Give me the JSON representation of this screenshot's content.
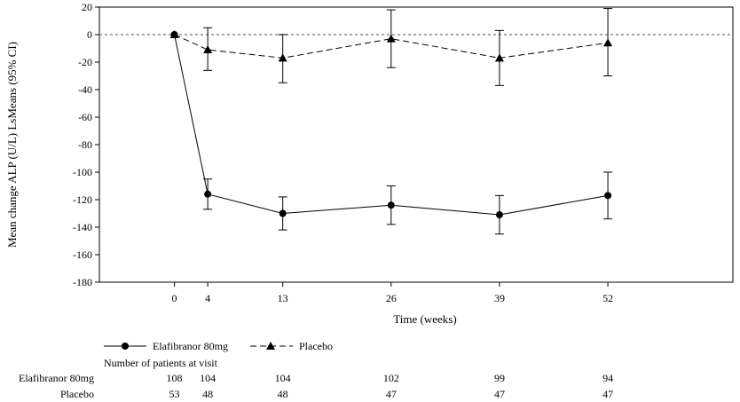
{
  "chart_data": {
    "type": "line",
    "xlabel": "Time (weeks)",
    "ylabel": "Mean change ALP (U/L) LsMeans (95% CI)",
    "x": [
      0,
      4,
      13,
      26,
      39,
      52
    ],
    "xlim": [
      -9,
      67
    ],
    "ylim": [
      -180,
      20
    ],
    "yticks": [
      20,
      0,
      -20,
      -40,
      -60,
      -80,
      -100,
      -120,
      -140,
      -160,
      -180
    ],
    "reference_line": 0,
    "legend_placement": "bottom-left",
    "series": [
      {
        "name": "Elafibranor 80mg",
        "marker": "circle",
        "line_style": "solid",
        "values": [
          0,
          -116,
          -130,
          -124,
          -131,
          -117
        ],
        "ci_lower": [
          0,
          -127,
          -142,
          -138,
          -145,
          -134
        ],
        "ci_upper": [
          0,
          -105,
          -118,
          -110,
          -117,
          -100
        ]
      },
      {
        "name": "Placebo",
        "marker": "triangle",
        "line_style": "dashed",
        "values": [
          0,
          -11,
          -17,
          -3,
          -17,
          -6
        ],
        "ci_lower": [
          0,
          -26,
          -35,
          -24,
          -37,
          -30
        ],
        "ci_upper": [
          0,
          5,
          0,
          18,
          3,
          19
        ]
      }
    ]
  },
  "at_risk": {
    "title": "Number of patients at visit",
    "rows": [
      {
        "label": "Elafibranor 80mg",
        "counts": [
          "108",
          "104",
          "104",
          "102",
          "99",
          "94"
        ]
      },
      {
        "label": "Placebo",
        "counts": [
          "53",
          "48",
          "48",
          "47",
          "47",
          "47"
        ]
      }
    ]
  }
}
